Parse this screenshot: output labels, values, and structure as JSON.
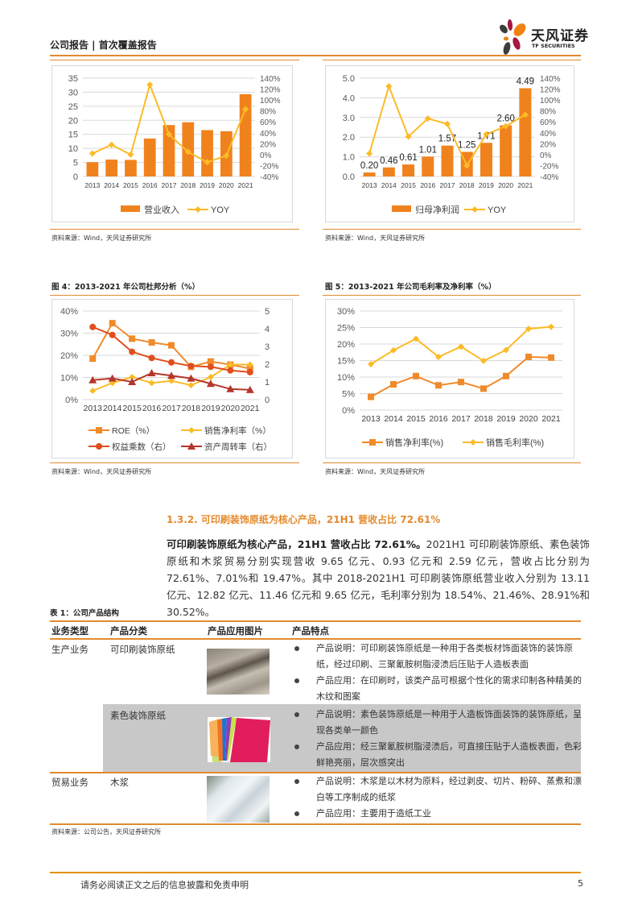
{
  "header": {
    "title": "公司报告 | 首次覆盖报告",
    "logo_cn": "天风证券",
    "logo_en": "TF SECURITIES"
  },
  "colors": {
    "accent": "#e38a2c",
    "bar": "#f0821e",
    "yoy_line": "#fbbb27",
    "roe": "#f08a2a",
    "equity_multiplier": "#e04e1c",
    "asset_turnover": "#b5362a",
    "table_shade": "#c8c8c8"
  },
  "figures": {
    "fig2": {
      "source": "资料来源：Wind，天风证券研究所"
    },
    "fig3": {
      "source": "资料来源：Wind，天风证券研究所"
    },
    "fig4": {
      "title": "图 4：2013-2021 年公司杜邦分析（%）",
      "source": "资料来源：Wind，天风证券研究所"
    },
    "fig5": {
      "title": "图 5：2013-2021 年公司毛利率及净利率（%）",
      "source": "资料来源：Wind，天风证券研究所"
    }
  },
  "chart_data": [
    {
      "type": "bar",
      "title": "",
      "categories": [
        "2013",
        "2014",
        "2015",
        "2016",
        "2017",
        "2018",
        "2019",
        "2020",
        "2021"
      ],
      "series": [
        {
          "name": "营业收入",
          "type": "bar",
          "axis": "left",
          "values": [
            5.1,
            6.0,
            5.9,
            13.5,
            18.3,
            19.3,
            16.5,
            16.1,
            29.3
          ]
        },
        {
          "name": "YOY",
          "type": "line",
          "axis": "right",
          "values": [
            2,
            18,
            0,
            128,
            37,
            5,
            -14,
            -2,
            83
          ]
        }
      ],
      "yticks_left": [
        "0",
        "5",
        "10",
        "15",
        "20",
        "25",
        "30",
        "35"
      ],
      "yticks_right": [
        "-40%",
        "-20%",
        "0%",
        "20%",
        "40%",
        "60%",
        "80%",
        "100%",
        "120%",
        "140%"
      ],
      "ylim": [
        0,
        35
      ],
      "ylim_right": [
        -40,
        140
      ],
      "legend": [
        "营业收入",
        "YOY"
      ],
      "legend_position": "bottom",
      "grid": true
    },
    {
      "type": "bar",
      "title": "",
      "categories": [
        "2013",
        "2014",
        "2015",
        "2016",
        "2017",
        "2018",
        "2019",
        "2020",
        "2021"
      ],
      "series": [
        {
          "name": "归母净利润",
          "type": "bar",
          "axis": "left",
          "values": [
            0.2,
            0.46,
            0.61,
            1.01,
            1.57,
            1.25,
            1.71,
            2.6,
            4.49
          ],
          "labels": [
            "0.20",
            "0.46",
            "0.61",
            "1.01",
            "1.57",
            "1.25",
            "1.71",
            "2.60",
            "4.49"
          ]
        },
        {
          "name": "YOY",
          "type": "line",
          "axis": "right",
          "values": [
            2,
            125,
            33,
            66,
            56,
            -20,
            37,
            52,
            73
          ]
        }
      ],
      "yticks_left": [
        "0.0",
        "1.0",
        "2.0",
        "3.0",
        "4.0",
        "5.0"
      ],
      "yticks_right": [
        "-40%",
        "-20%",
        "0%",
        "20%",
        "40%",
        "60%",
        "80%",
        "100%",
        "120%",
        "140%"
      ],
      "ylim": [
        0,
        5
      ],
      "ylim_right": [
        -40,
        140
      ],
      "legend": [
        "归母净利润",
        "YOY"
      ],
      "legend_position": "bottom",
      "grid": true
    },
    {
      "type": "line",
      "title": "2013-2021 年公司杜邦分析（%）",
      "categories": [
        "2013",
        "2014",
        "2015",
        "2016",
        "2017",
        "2018",
        "2019",
        "2020",
        "2021"
      ],
      "series": [
        {
          "name": "ROE（%）",
          "axis": "left",
          "marker": "square",
          "values": [
            18.5,
            34.5,
            27.5,
            25.8,
            24.5,
            14.8,
            17.2,
            15.8,
            14.0
          ]
        },
        {
          "name": "销售净利率（%）",
          "axis": "left",
          "marker": "diamond",
          "values": [
            4.0,
            7.5,
            10.2,
            7.5,
            8.5,
            6.5,
            10.2,
            15.8,
            15.8
          ]
        },
        {
          "name": "权益乘数（右）",
          "axis": "right",
          "marker": "circle",
          "values": [
            4.1,
            3.65,
            2.7,
            2.35,
            2.1,
            1.9,
            1.85,
            1.65,
            1.55
          ]
        },
        {
          "name": "资产周转率（右）",
          "axis": "right",
          "marker": "triangle",
          "values": [
            1.1,
            1.2,
            1.0,
            1.5,
            1.35,
            1.2,
            0.9,
            0.6,
            0.55
          ]
        }
      ],
      "yticks_left": [
        "0%",
        "10%",
        "20%",
        "30%",
        "40%"
      ],
      "yticks_right": [
        "0",
        "1",
        "2",
        "3",
        "4",
        "5"
      ],
      "ylim": [
        0,
        40
      ],
      "ylim_right": [
        0,
        5
      ],
      "legend_position": "bottom",
      "grid": true
    },
    {
      "type": "line",
      "title": "2013-2021 年公司毛利率及净利率（%）",
      "categories": [
        "2013",
        "2014",
        "2015",
        "2016",
        "2017",
        "2018",
        "2019",
        "2020",
        "2021"
      ],
      "series": [
        {
          "name": "销售净利率(%)",
          "marker": "square",
          "values": [
            4.0,
            7.8,
            10.3,
            7.5,
            8.5,
            6.5,
            10.3,
            16.1,
            15.9
          ]
        },
        {
          "name": "销售毛利率(%)",
          "marker": "diamond",
          "values": [
            13.9,
            18.1,
            21.6,
            16.1,
            19.2,
            14.9,
            18.2,
            24.6,
            25.2
          ]
        }
      ],
      "yticks_left": [
        "0%",
        "5%",
        "10%",
        "15%",
        "20%",
        "25%",
        "30%"
      ],
      "ylim": [
        0,
        30
      ],
      "legend_position": "bottom",
      "grid": true
    }
  ],
  "section": {
    "heading": "1.3.2. 可印刷装饰原纸为核心产品，21H1 营收占比 72.61%",
    "para_bold": "可印刷装饰原纸为核心产品，21H1 营收占比 72.61%。",
    "para_text": "2021H1 可印刷装饰原纸、素色装饰原纸和木浆贸易分别实现营收 9.65 亿元、0.93 亿元和 2.59 亿元，营收占比分别为 72.61%、7.01%和 19.47%。其中 2018-2021H1 可印刷装饰原纸营业收入分别为 13.11 亿元、12.82 亿元、11.46 亿元和 9.65 亿元，毛利率分别为 18.54%、21.46%、28.91%和 30.52%。"
  },
  "table": {
    "title": "表 1：公司产品结构",
    "headers": [
      "业务类型",
      "产品分类",
      "产品应用图片",
      "产品特点"
    ],
    "rows": [
      {
        "business": "生产业务",
        "category": "可印刷装饰原纸",
        "image": "decor-paper-rolls",
        "bullets": [
          "产品说明：可印刷装饰原纸是一种用于各类板材饰面装饰的装饰原纸，经过印刷、三聚氰胺树脂浸渍后压贴于人造板表面",
          "产品应用：在印刷时，该类产品可根据个性化的需求印制各种精美的木纹和图案"
        ]
      },
      {
        "business": "",
        "category": "素色装饰原纸",
        "image": "color-paper-fan",
        "bullets": [
          "产品说明：素色装饰原纸是一种用于人造板饰面装饰的装饰原纸，呈现各类单一颜色",
          "产品应用：经三聚氰胺树脂浸渍后，可直接压贴于人造板表面，色彩鲜艳亮丽，层次感突出"
        ]
      },
      {
        "business": "贸易业务",
        "category": "木浆",
        "image": "wood-pulp-bales",
        "bullets": [
          "产品说明：木浆是以木材为原料，经过剥皮、切片、粉碎、蒸煮和漂白等工序制成的纸浆",
          "产品应用：主要用于造纸工业"
        ]
      }
    ],
    "source": "资料来源：公司公告，天风证券研究所"
  },
  "footer": {
    "disclaimer": "请务必阅读正文之后的信息披露和免责申明",
    "page": "5"
  }
}
